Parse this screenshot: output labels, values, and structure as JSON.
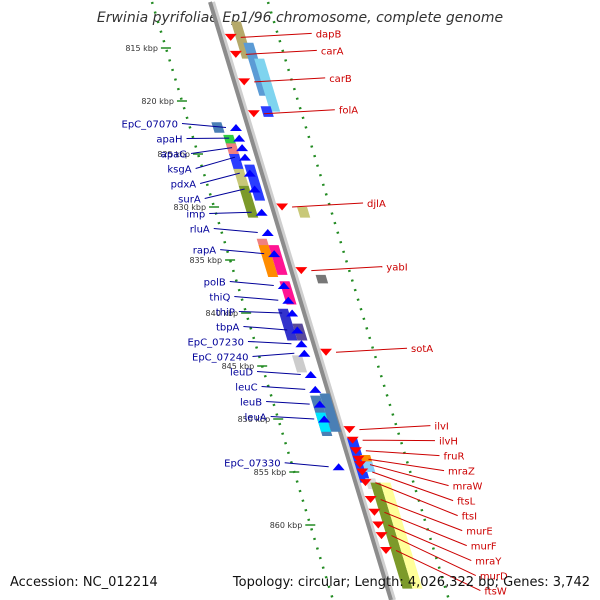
{
  "title": "Erwinia pyrifoliae Ep1/96 chromosome, complete genome",
  "accession_label": "Accession: NC_012214",
  "summary_label": "Topology: circular; Length: 4,026,322 bp; Genes: 3,742",
  "colors": {
    "backbone": "#8c8c8c",
    "ticks": "#228b22",
    "forward_gene_arrow": "#ff0000",
    "reverse_gene_arrow": "#0000ff",
    "forward_label": "#cc0000",
    "reverse_label": "#000099"
  },
  "kbp_marks": [
    {
      "kbp": 815,
      "label": "815 kbp"
    },
    {
      "kbp": 820,
      "label": "820 kbp"
    },
    {
      "kbp": 825,
      "label": "825 kbp"
    },
    {
      "kbp": 830,
      "label": "830 kbp"
    },
    {
      "kbp": 835,
      "label": "835 kbp"
    },
    {
      "kbp": 840,
      "label": "840 kbp"
    },
    {
      "kbp": 845,
      "label": "845 kbp"
    },
    {
      "kbp": 850,
      "label": "850 kbp"
    },
    {
      "kbp": 855,
      "label": "855 kbp"
    },
    {
      "kbp": 860,
      "label": "860 kbp"
    }
  ],
  "forward_genes": [
    {
      "name": "dapB",
      "kbp": 814.0
    },
    {
      "name": "carA",
      "kbp": 815.6
    },
    {
      "name": "carB",
      "kbp": 818.2
    },
    {
      "name": "folA",
      "kbp": 821.2
    },
    {
      "name": "djlA",
      "kbp": 830.0
    },
    {
      "name": "yabI",
      "kbp": 836.0
    },
    {
      "name": "sotA",
      "kbp": 843.7
    },
    {
      "name": "ilvI",
      "kbp": 851.0
    },
    {
      "name": "ilvH",
      "kbp": 852.0
    },
    {
      "name": "fruR",
      "kbp": 853.0
    },
    {
      "name": "mraZ",
      "kbp": 853.8
    },
    {
      "name": "mraW",
      "kbp": 854.3
    },
    {
      "name": "ftsL",
      "kbp": 855.0
    },
    {
      "name": "ftsI",
      "kbp": 856.0
    },
    {
      "name": "murE",
      "kbp": 857.6
    },
    {
      "name": "murF",
      "kbp": 858.8
    },
    {
      "name": "mraY",
      "kbp": 860.0
    },
    {
      "name": "murD",
      "kbp": 861.0
    },
    {
      "name": "ftsW",
      "kbp": 862.4
    }
  ],
  "reverse_genes": [
    {
      "name": "EpC_07070",
      "kbp": 822.5
    },
    {
      "name": "apaH",
      "kbp": 823.5
    },
    {
      "name": "apaG",
      "kbp": 824.4
    },
    {
      "name": "ksgA",
      "kbp": 825.3
    },
    {
      "name": "pdxA",
      "kbp": 826.8
    },
    {
      "name": "surA",
      "kbp": 828.3
    },
    {
      "name": "imp",
      "kbp": 830.5
    },
    {
      "name": "rluA",
      "kbp": 832.4
    },
    {
      "name": "rapA",
      "kbp": 834.4
    },
    {
      "name": "polB",
      "kbp": 837.4
    },
    {
      "name": "thiQ",
      "kbp": 838.8
    },
    {
      "name": "thiP",
      "kbp": 840.0
    },
    {
      "name": "tbpA",
      "kbp": 841.6
    },
    {
      "name": "EpC_07230",
      "kbp": 842.9
    },
    {
      "name": "EpC_07240",
      "kbp": 843.8
    },
    {
      "name": "leuD",
      "kbp": 845.8
    },
    {
      "name": "leuC",
      "kbp": 847.2
    },
    {
      "name": "leuB",
      "kbp": 848.6
    },
    {
      "name": "leuA",
      "kbp": 850.0
    },
    {
      "name": "EpC_07330",
      "kbp": 854.5
    }
  ]
}
